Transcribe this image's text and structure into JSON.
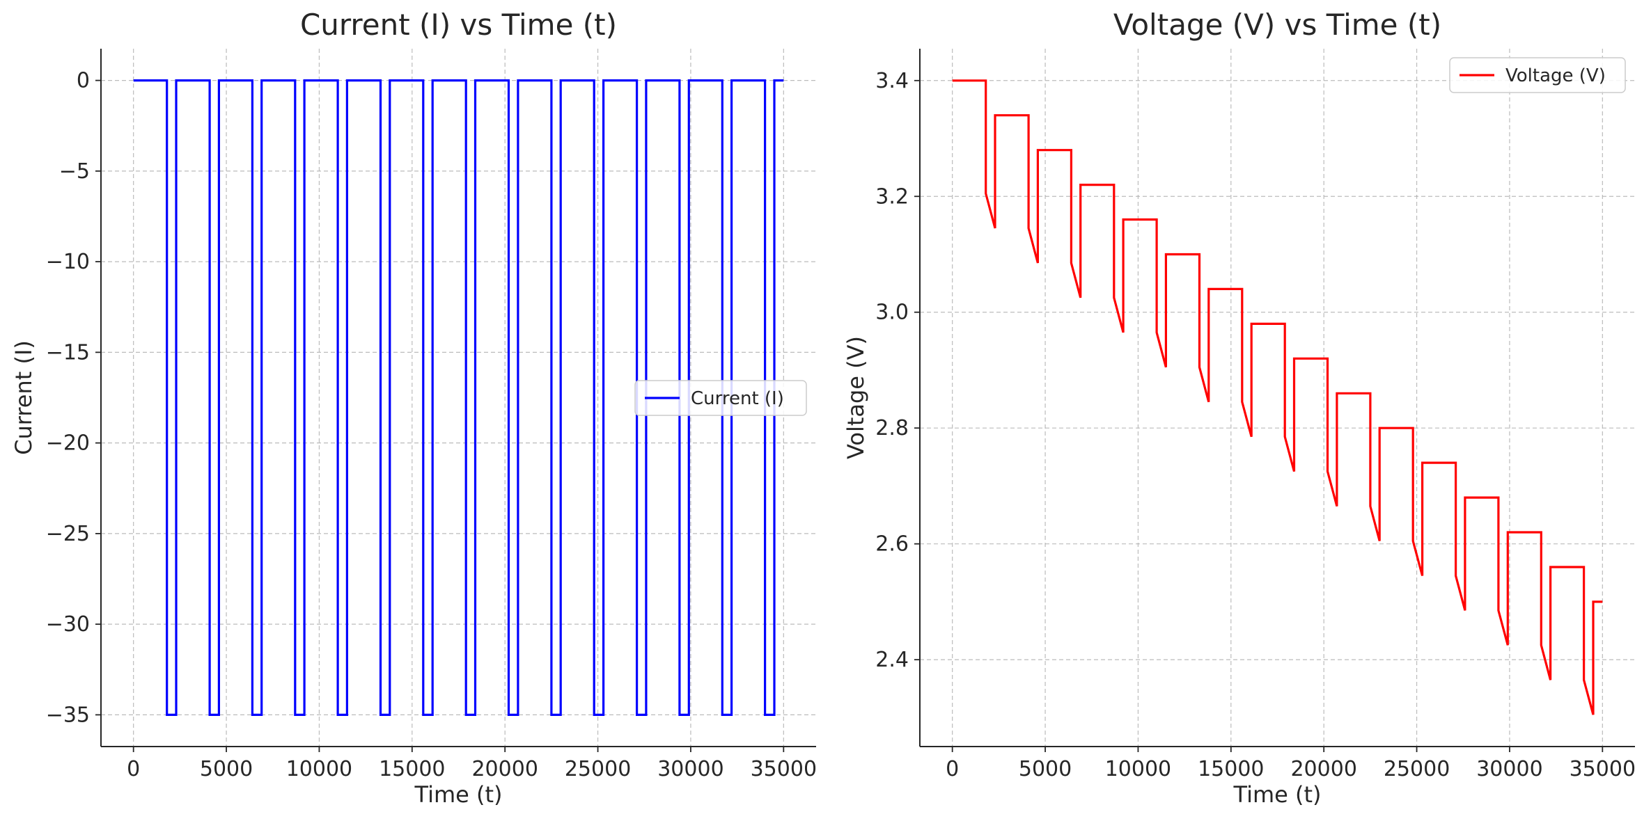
{
  "chart_data": [
    {
      "type": "line",
      "title": "Current (I) vs Time (t)",
      "xlabel": "Time (t)",
      "ylabel": "Current (I)",
      "xlim": [
        -1750,
        36750
      ],
      "ylim": [
        -36.75,
        1.75
      ],
      "xticks": [
        0,
        5000,
        10000,
        15000,
        20000,
        25000,
        30000,
        35000
      ],
      "xtick_labels": [
        "0",
        "5000",
        "10000",
        "15000",
        "20000",
        "25000",
        "30000",
        "35000"
      ],
      "yticks": [
        0,
        -5,
        -10,
        -15,
        -20,
        -25,
        -30,
        -35
      ],
      "ytick_labels": [
        "0",
        "−5",
        "−10",
        "−15",
        "−20",
        "−25",
        "−30",
        "−35"
      ],
      "grid": true,
      "legend_position": "center-right",
      "series": [
        {
          "name": "Current (I)",
          "color": "#0000ff",
          "x": [
            0,
            1800,
            1800,
            2300,
            2300,
            4100,
            4100,
            4600,
            4600,
            6400,
            6400,
            6900,
            6900,
            8700,
            8700,
            9200,
            9200,
            11000,
            11000,
            11500,
            11500,
            13300,
            13300,
            13800,
            13800,
            15600,
            15600,
            16100,
            16100,
            17900,
            17900,
            18400,
            18400,
            20200,
            20200,
            20700,
            20700,
            22500,
            22500,
            23000,
            23000,
            24800,
            24800,
            25300,
            25300,
            27100,
            27100,
            27600,
            27600,
            29400,
            29400,
            29900,
            29900,
            31700,
            31700,
            32200,
            32200,
            34000,
            34000,
            34500,
            34500,
            35000
          ],
          "y": [
            0,
            0,
            -35,
            -35,
            0,
            0,
            -35,
            -35,
            0,
            0,
            -35,
            -35,
            0,
            0,
            -35,
            -35,
            0,
            0,
            -35,
            -35,
            0,
            0,
            -35,
            -35,
            0,
            0,
            -35,
            -35,
            0,
            0,
            -35,
            -35,
            0,
            0,
            -35,
            -35,
            0,
            0,
            -35,
            -35,
            0,
            0,
            -35,
            -35,
            0,
            0,
            -35,
            -35,
            0,
            0,
            -35,
            -35,
            0,
            0,
            -35,
            -35,
            0,
            0,
            -35,
            -35,
            0,
            0
          ]
        }
      ]
    },
    {
      "type": "line",
      "title": "Voltage (V) vs Time (t)",
      "xlabel": "Time (t)",
      "ylabel": "Voltage (V)",
      "xlim": [
        -1750,
        36750
      ],
      "ylim": [
        2.25,
        3.455
      ],
      "xticks": [
        0,
        5000,
        10000,
        15000,
        20000,
        25000,
        30000,
        35000
      ],
      "xtick_labels": [
        "0",
        "5000",
        "10000",
        "15000",
        "20000",
        "25000",
        "30000",
        "35000"
      ],
      "yticks": [
        2.4,
        2.6,
        2.8,
        3.0,
        3.2,
        3.4
      ],
      "ytick_labels": [
        "2.4",
        "2.6",
        "2.8",
        "3.0",
        "3.2",
        "3.4"
      ],
      "grid": true,
      "legend_position": "top-right",
      "series": [
        {
          "name": "Voltage (V)",
          "color": "#ff0000",
          "x": [
            0,
            1800,
            1800,
            2300,
            2300,
            4100,
            4100,
            4600,
            4600,
            6400,
            6400,
            6900,
            6900,
            8700,
            8700,
            9200,
            9200,
            11000,
            11000,
            11500,
            11500,
            13300,
            13300,
            13800,
            13800,
            15600,
            15600,
            16100,
            16100,
            17900,
            17900,
            18400,
            18400,
            20200,
            20200,
            20700,
            20700,
            22500,
            22500,
            23000,
            23000,
            24800,
            24800,
            25300,
            25300,
            27100,
            27100,
            27600,
            27600,
            29400,
            29400,
            29900,
            29900,
            31700,
            31700,
            32200,
            32200,
            34000,
            34000,
            34500,
            34500,
            35000
          ],
          "y": [
            3.4,
            3.4,
            3.205,
            3.145,
            3.34,
            3.34,
            3.145,
            3.085,
            3.28,
            3.28,
            3.085,
            3.025,
            3.22,
            3.22,
            3.025,
            2.965,
            3.16,
            3.16,
            2.965,
            2.905,
            3.1,
            3.1,
            2.905,
            2.845,
            3.04,
            3.04,
            2.845,
            2.785,
            2.98,
            2.98,
            2.785,
            2.725,
            2.92,
            2.92,
            2.725,
            2.665,
            2.86,
            2.86,
            2.665,
            2.605,
            2.8,
            2.8,
            2.605,
            2.545,
            2.74,
            2.74,
            2.545,
            2.485,
            2.68,
            2.68,
            2.485,
            2.425,
            2.62,
            2.62,
            2.425,
            2.365,
            2.56,
            2.56,
            2.365,
            2.305,
            2.5,
            2.5
          ]
        }
      ]
    }
  ]
}
